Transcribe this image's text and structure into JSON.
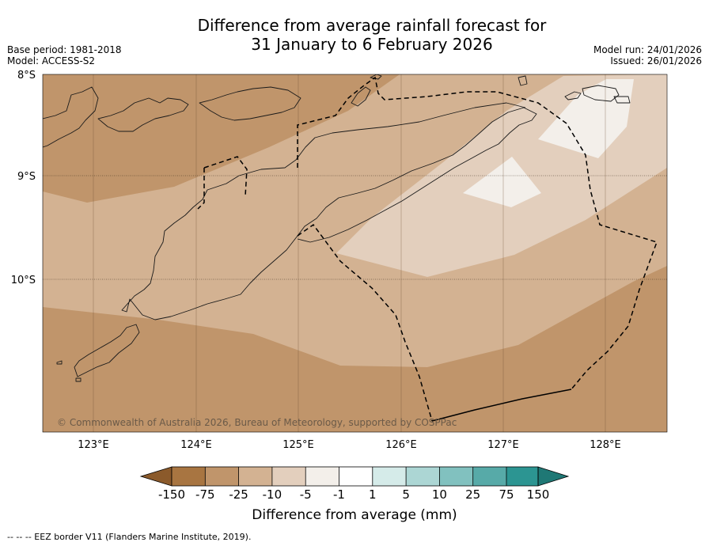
{
  "header": {
    "title_line1": "Difference from average rainfall forecast for",
    "title_line2": "31 January to 6 February 2026",
    "base_period": "Base period: 1981-2018",
    "model": "Model: ACCESS-S2",
    "model_run": "Model run: 24/01/2026",
    "issued": "Issued: 26/01/2026"
  },
  "map": {
    "lat_labels": [
      "8°S",
      "9°S",
      "10°S"
    ],
    "lon_labels": [
      "123°E",
      "124°E",
      "125°E",
      "126°E",
      "127°E",
      "128°E"
    ],
    "copyright": "© Commonwealth of Australia 2026, Bureau of Meteorology, supported by COSPPac",
    "colors": {
      "band_lt_-75": "#c0956b",
      "band_-75_-25": "#d3b292",
      "band_-25_-10": "#e3cfbd",
      "band_-10_-5": "#f3efea"
    }
  },
  "colorbar": {
    "ticks": [
      "-150",
      "-75",
      "-25",
      "-10",
      "-5",
      "-1",
      "1",
      "5",
      "10",
      "25",
      "75",
      "150"
    ],
    "colors": [
      "#a87541",
      "#c0956b",
      "#d3b292",
      "#e3cfbd",
      "#f3efea",
      "#ffffff",
      "#d5ebe9",
      "#acd6d4",
      "#81c1bf",
      "#57aaa8",
      "#2c9592"
    ],
    "extend_low_color": "#8b5a2b",
    "extend_high_color": "#1f7875",
    "label": "Difference from average (mm)"
  },
  "footnote": "-- -- -- EEZ border V11 (Flanders Marine Institute, 2019)."
}
